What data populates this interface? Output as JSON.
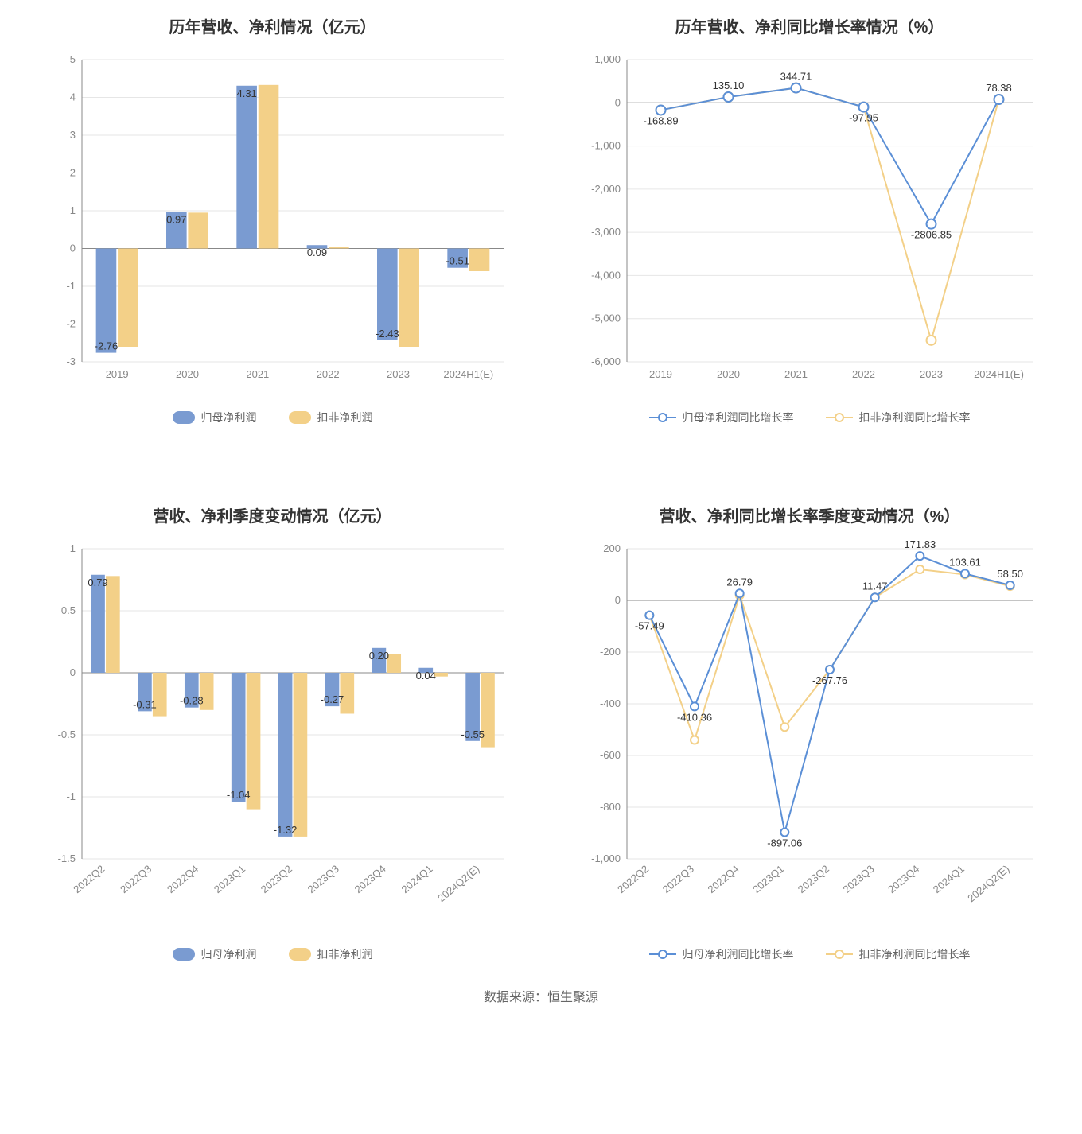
{
  "colors": {
    "series_a": "#7a9bd1",
    "series_b": "#f3d088",
    "line_a": "#5b8fd6",
    "line_b": "#f3d088",
    "marker_fill": "#ffffff",
    "grid": "#e6e6e6",
    "axis": "#888888",
    "text": "#333333",
    "bg": "#ffffff"
  },
  "legend_bar": {
    "a": "归母净利润",
    "b": "扣非净利润"
  },
  "legend_line": {
    "a": "归母净利润同比增长率",
    "b": "扣非净利润同比增长率"
  },
  "chart_tl": {
    "type": "bar",
    "title": "历年营收、净利情况（亿元）",
    "categories": [
      "2019",
      "2020",
      "2021",
      "2022",
      "2023",
      "2024H1(E)"
    ],
    "series_a": [
      -2.76,
      0.97,
      4.31,
      0.09,
      -2.43,
      -0.51
    ],
    "series_b": [
      -2.6,
      0.95,
      4.33,
      0.05,
      -2.6,
      -0.6
    ],
    "ylim": [
      -3,
      5
    ],
    "ytick_step": 1,
    "bar_group_width": 0.6,
    "bar_gap": 0.02,
    "labels_show_on": "a",
    "label_fontsize": 13,
    "title_fontsize": 20
  },
  "chart_tr": {
    "type": "line",
    "title": "历年营收、净利同比增长率情况（%）",
    "categories": [
      "2019",
      "2020",
      "2021",
      "2022",
      "2023",
      "2024H1(E)"
    ],
    "series_a": [
      -168.89,
      135.1,
      344.71,
      -97.95,
      -2806.85,
      78.38
    ],
    "series_b": [
      -168.89,
      135.1,
      344.71,
      -97.95,
      -5500,
      78.38
    ],
    "labels": [
      "-168.89",
      "135.10",
      "344.71",
      "-97.95",
      "-2806.85",
      "78.38"
    ],
    "ylim": [
      -6000,
      1000
    ],
    "ytick_step": 1000,
    "marker_radius": 6,
    "line_width": 2,
    "label_fontsize": 13,
    "title_fontsize": 20
  },
  "chart_bl": {
    "type": "bar",
    "title": "营收、净利季度变动情况（亿元）",
    "categories": [
      "2022Q2",
      "2022Q3",
      "2022Q4",
      "2023Q1",
      "2023Q2",
      "2023Q3",
      "2023Q4",
      "2024Q1",
      "2024Q2(E)"
    ],
    "series_a": [
      0.79,
      -0.31,
      -0.28,
      -1.04,
      -1.32,
      -0.27,
      0.2,
      0.04,
      -0.55
    ],
    "series_b": [
      0.78,
      -0.35,
      -0.3,
      -1.1,
      -1.32,
      -0.33,
      0.15,
      -0.03,
      -0.6
    ],
    "ylim": [
      -1.5,
      1
    ],
    "ytick_step": 0.5,
    "bar_group_width": 0.62,
    "bar_gap": 0.02,
    "labels_show_on": "a",
    "xlabels_rotate": -40,
    "label_fontsize": 13,
    "title_fontsize": 20
  },
  "chart_br": {
    "type": "line",
    "title": "营收、净利同比增长率季度变动情况（%）",
    "categories": [
      "2022Q2",
      "2022Q3",
      "2022Q4",
      "2023Q1",
      "2023Q2",
      "2023Q3",
      "2023Q4",
      "2024Q1",
      "2024Q2(E)"
    ],
    "series_a": [
      -57.49,
      -410.36,
      26.79,
      -897.06,
      -267.76,
      11.47,
      171.83,
      103.61,
      58.5
    ],
    "series_b": [
      -57.49,
      -540,
      20,
      -490,
      -267.76,
      11.47,
      120,
      100,
      55
    ],
    "labels": [
      "-57.49",
      "-410.36",
      "26.79",
      "-897.06",
      "-267.76",
      "11.47",
      "171.83",
      "103.61",
      "58.50"
    ],
    "ylim": [
      -1000,
      200
    ],
    "ytick_step": 200,
    "marker_radius": 5,
    "line_width": 2,
    "xlabels_rotate": -40,
    "label_fontsize": 13,
    "title_fontsize": 20
  },
  "footer": "数据来源：恒生聚源"
}
